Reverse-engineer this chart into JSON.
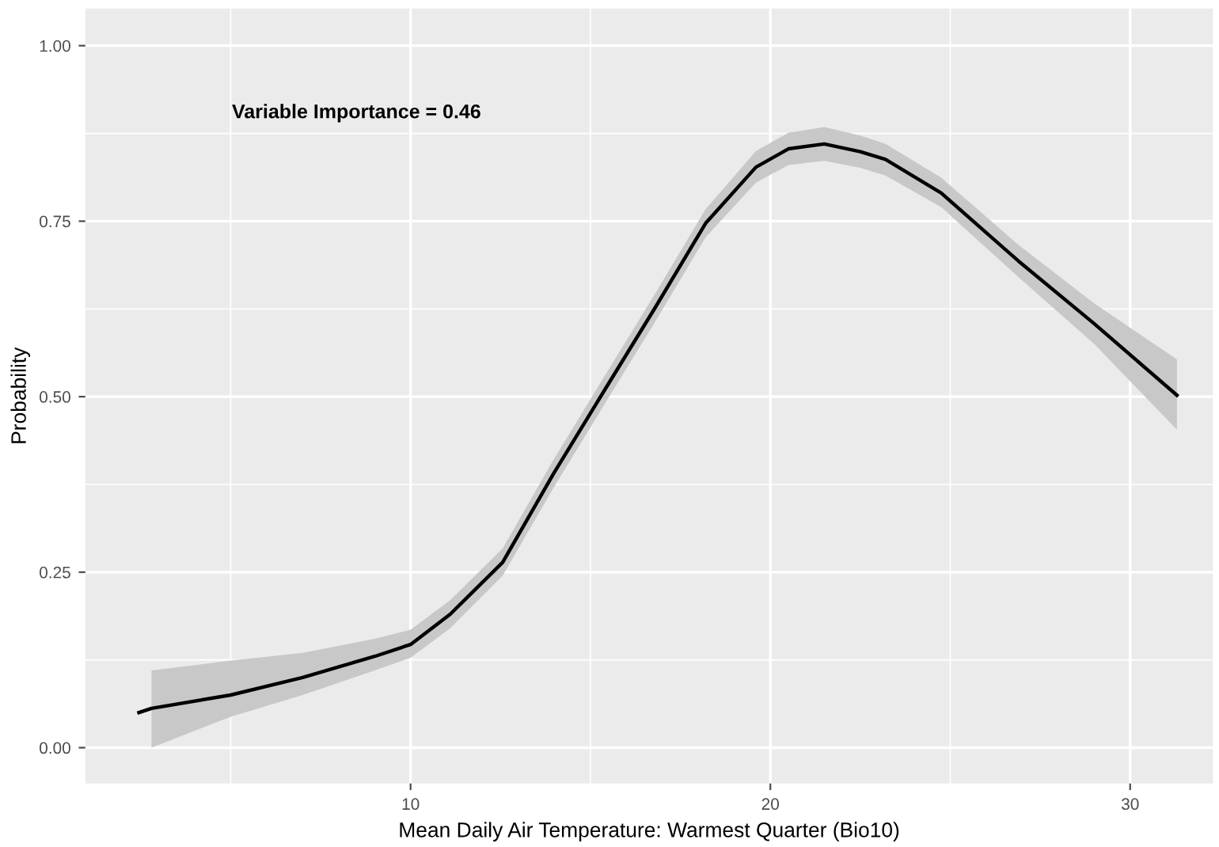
{
  "chart_data": {
    "type": "line",
    "xlabel": "Mean Daily Air Temperature: Warmest Quarter (Bio10)",
    "ylabel": "Probability",
    "annotations": [
      "Variable Importance = 0.46"
    ],
    "x": [
      2.45,
      2.8,
      5,
      7,
      9,
      10,
      11.1,
      12.56,
      13.97,
      15.4,
      16.8,
      18.2,
      19.6,
      20.5,
      21.5,
      22.5,
      23.2,
      24.75,
      26.9,
      29.0,
      31.3
    ],
    "series": [
      {
        "color": "#000000",
        "values": [
          0.05,
          0.056,
          0.075,
          0.1,
          0.13,
          0.147,
          0.19,
          0.264,
          0.39,
          0.51,
          0.627,
          0.747,
          0.827,
          0.853,
          0.86,
          0.849,
          0.838,
          0.79,
          0.693,
          0.604,
          0.502
        ],
        "lower": [
          null,
          0.0,
          0.044,
          0.075,
          0.11,
          0.128,
          0.17,
          0.245,
          0.37,
          0.49,
          0.607,
          0.727,
          0.805,
          0.83,
          0.836,
          0.826,
          0.815,
          0.77,
          0.67,
          0.575,
          0.453
        ],
        "upper": [
          null,
          0.11,
          0.124,
          0.135,
          0.155,
          0.168,
          0.21,
          0.284,
          0.41,
          0.53,
          0.647,
          0.767,
          0.85,
          0.876,
          0.884,
          0.872,
          0.86,
          0.812,
          0.716,
          0.633,
          0.553
        ]
      }
    ],
    "xlim": [
      0.96,
      32.3
    ],
    "ylim": [
      -0.051,
      1.053
    ],
    "xticks": [
      10,
      20,
      30
    ],
    "yticks": [
      {
        "value": 0,
        "label": "0.00"
      },
      {
        "value": 0.25,
        "label": "0.25"
      },
      {
        "value": 0.5,
        "label": "0.50"
      },
      {
        "value": 0.75,
        "label": "0.75"
      },
      {
        "value": 1,
        "label": "1.00"
      }
    ],
    "grid": true,
    "marker": "none",
    "line_style": "solid"
  }
}
